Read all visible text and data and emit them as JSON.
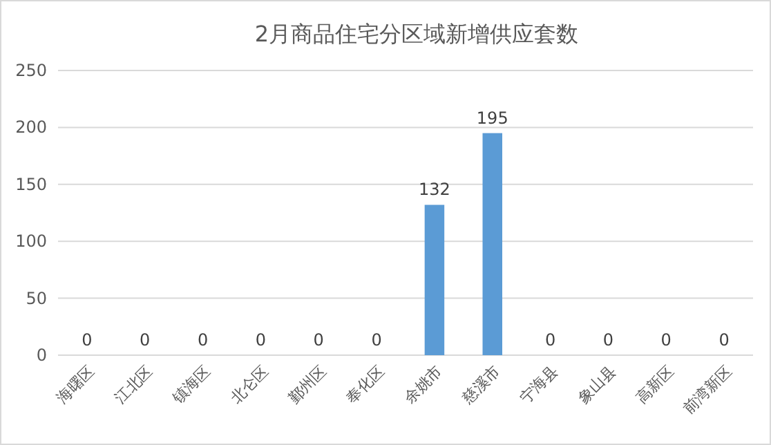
{
  "chart_data": {
    "type": "bar",
    "title": "2月商品住宅分区域新增供应套数",
    "categories": [
      "海曙区",
      "江北区",
      "镇海区",
      "北仑区",
      "鄞州区",
      "奉化区",
      "余姚市",
      "慈溪市",
      "宁海县",
      "象山县",
      "高新区",
      "前湾新区"
    ],
    "values": [
      0,
      0,
      0,
      0,
      0,
      0,
      132,
      195,
      0,
      0,
      0,
      0
    ],
    "color": "#5b9bd5",
    "ylim": [
      0,
      250
    ],
    "yticks": [
      0,
      50,
      100,
      150,
      200,
      250
    ],
    "grid": "y",
    "data_labels": true
  }
}
